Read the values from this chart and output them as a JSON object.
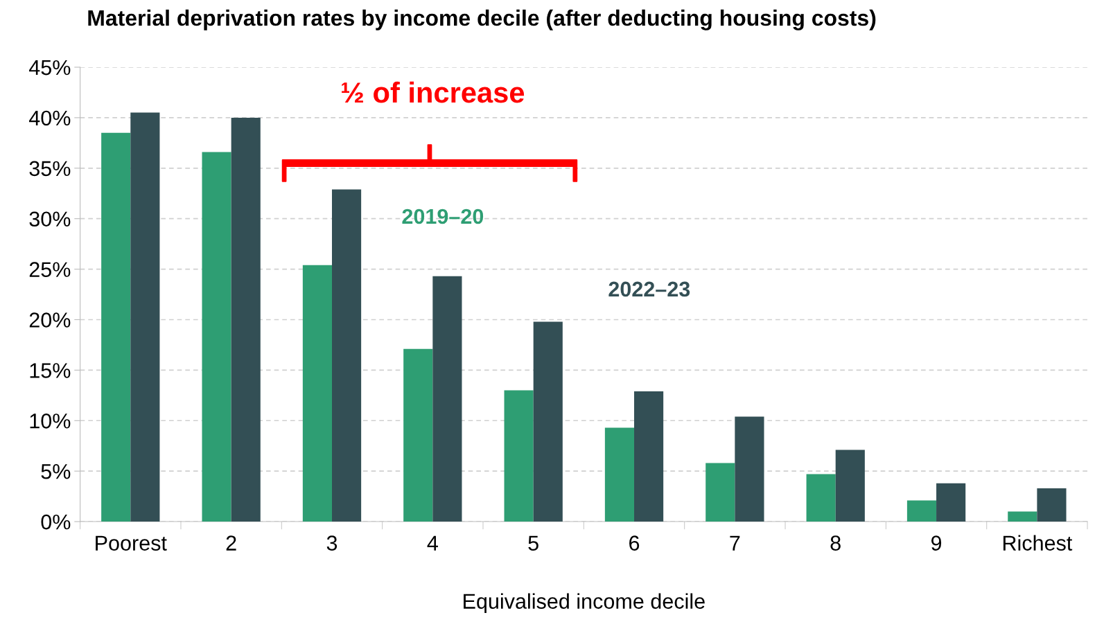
{
  "chart_data": {
    "type": "bar",
    "title": "Material deprivation rates by income decile (after deducting housing costs)",
    "xlabel": "Equivalised income decile",
    "categories": [
      "Poorest",
      "2",
      "3",
      "4",
      "5",
      "6",
      "7",
      "8",
      "9",
      "Richest"
    ],
    "series": [
      {
        "name": "2019–20",
        "color": "#2e9e73",
        "values": [
          38.5,
          36.6,
          25.4,
          17.1,
          13.0,
          9.3,
          5.8,
          4.7,
          2.1,
          1.0
        ]
      },
      {
        "name": "2022–23",
        "color": "#334f55",
        "values": [
          40.5,
          40.0,
          32.9,
          24.3,
          19.8,
          12.9,
          10.4,
          7.1,
          3.8,
          3.3
        ]
      }
    ],
    "ylim": [
      0,
      45
    ],
    "yticks": [
      {
        "value": 0,
        "label": "0%"
      },
      {
        "value": 5,
        "label": "5%"
      },
      {
        "value": 10,
        "label": "10%"
      },
      {
        "value": 15,
        "label": "15%"
      },
      {
        "value": 20,
        "label": "20%"
      },
      {
        "value": 25,
        "label": "25%"
      },
      {
        "value": 30,
        "label": "30%"
      },
      {
        "value": 35,
        "label": "35%"
      },
      {
        "value": 40,
        "label": "40%"
      },
      {
        "value": 45,
        "label": "45%"
      }
    ],
    "grid": "y",
    "legend": false,
    "annotations": [
      "½ of increase"
    ]
  }
}
